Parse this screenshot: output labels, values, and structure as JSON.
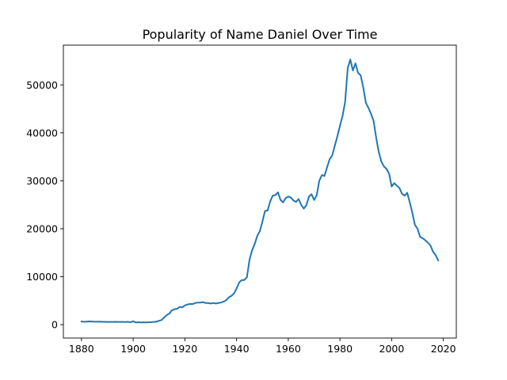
{
  "chart_data": {
    "type": "line",
    "title": "Popularity of Name Daniel Over Time",
    "xlabel": "",
    "ylabel": "",
    "xlim": [
      1873,
      2025
    ],
    "ylim": [
      -2800,
      58300
    ],
    "xticks": [
      1880,
      1900,
      1920,
      1940,
      1960,
      1980,
      2000,
      2020
    ],
    "yticks": [
      0,
      10000,
      20000,
      30000,
      40000,
      50000
    ],
    "grid": false,
    "line_color": "#1f77b4",
    "series": [
      {
        "points": [
          [
            1880,
            650
          ],
          [
            1881,
            580
          ],
          [
            1882,
            620
          ],
          [
            1883,
            660
          ],
          [
            1884,
            640
          ],
          [
            1885,
            610
          ],
          [
            1886,
            600
          ],
          [
            1887,
            620
          ],
          [
            1888,
            590
          ],
          [
            1889,
            580
          ],
          [
            1890,
            560
          ],
          [
            1891,
            560
          ],
          [
            1892,
            570
          ],
          [
            1893,
            580
          ],
          [
            1894,
            560
          ],
          [
            1895,
            570
          ],
          [
            1896,
            560
          ],
          [
            1897,
            550
          ],
          [
            1898,
            580
          ],
          [
            1899,
            500
          ],
          [
            1900,
            700
          ],
          [
            1901,
            450
          ],
          [
            1902,
            500
          ],
          [
            1903,
            460
          ],
          [
            1904,
            480
          ],
          [
            1905,
            470
          ],
          [
            1906,
            500
          ],
          [
            1907,
            520
          ],
          [
            1908,
            560
          ],
          [
            1909,
            620
          ],
          [
            1910,
            800
          ],
          [
            1911,
            950
          ],
          [
            1912,
            1500
          ],
          [
            1913,
            2000
          ],
          [
            1914,
            2300
          ],
          [
            1915,
            3000
          ],
          [
            1916,
            3200
          ],
          [
            1917,
            3300
          ],
          [
            1918,
            3700
          ],
          [
            1919,
            3600
          ],
          [
            1920,
            4000
          ],
          [
            1921,
            4200
          ],
          [
            1922,
            4300
          ],
          [
            1923,
            4300
          ],
          [
            1924,
            4500
          ],
          [
            1925,
            4600
          ],
          [
            1926,
            4600
          ],
          [
            1927,
            4700
          ],
          [
            1928,
            4500
          ],
          [
            1929,
            4500
          ],
          [
            1930,
            4400
          ],
          [
            1931,
            4500
          ],
          [
            1932,
            4400
          ],
          [
            1933,
            4500
          ],
          [
            1934,
            4600
          ],
          [
            1935,
            4800
          ],
          [
            1936,
            5100
          ],
          [
            1937,
            5700
          ],
          [
            1938,
            6000
          ],
          [
            1939,
            6500
          ],
          [
            1940,
            7500
          ],
          [
            1941,
            8800
          ],
          [
            1942,
            9300
          ],
          [
            1943,
            9300
          ],
          [
            1944,
            9900
          ],
          [
            1945,
            13500
          ],
          [
            1946,
            15500
          ],
          [
            1947,
            16800
          ],
          [
            1948,
            18500
          ],
          [
            1949,
            19500
          ],
          [
            1950,
            21500
          ],
          [
            1951,
            23700
          ],
          [
            1952,
            23800
          ],
          [
            1953,
            25700
          ],
          [
            1954,
            26900
          ],
          [
            1955,
            27000
          ],
          [
            1956,
            27600
          ],
          [
            1957,
            26000
          ],
          [
            1958,
            25500
          ],
          [
            1959,
            26400
          ],
          [
            1960,
            26700
          ],
          [
            1961,
            26500
          ],
          [
            1962,
            25900
          ],
          [
            1963,
            25600
          ],
          [
            1964,
            26200
          ],
          [
            1965,
            25000
          ],
          [
            1966,
            24200
          ],
          [
            1967,
            24900
          ],
          [
            1968,
            26700
          ],
          [
            1969,
            27200
          ],
          [
            1970,
            26000
          ],
          [
            1971,
            27000
          ],
          [
            1972,
            30000
          ],
          [
            1973,
            31200
          ],
          [
            1974,
            31000
          ],
          [
            1975,
            32800
          ],
          [
            1976,
            34500
          ],
          [
            1977,
            35300
          ],
          [
            1978,
            37300
          ],
          [
            1979,
            39300
          ],
          [
            1980,
            41500
          ],
          [
            1981,
            43500
          ],
          [
            1982,
            46500
          ],
          [
            1983,
            53500
          ],
          [
            1984,
            55300
          ],
          [
            1985,
            53000
          ],
          [
            1986,
            54500
          ],
          [
            1987,
            52500
          ],
          [
            1988,
            52000
          ],
          [
            1989,
            49500
          ],
          [
            1990,
            46300
          ],
          [
            1991,
            45200
          ],
          [
            1992,
            44000
          ],
          [
            1993,
            42500
          ],
          [
            1994,
            39000
          ],
          [
            1995,
            36000
          ],
          [
            1996,
            34000
          ],
          [
            1997,
            33000
          ],
          [
            1998,
            32500
          ],
          [
            1999,
            31500
          ],
          [
            2000,
            28800
          ],
          [
            2001,
            29500
          ],
          [
            2002,
            29000
          ],
          [
            2003,
            28500
          ],
          [
            2004,
            27300
          ],
          [
            2005,
            26900
          ],
          [
            2006,
            27500
          ],
          [
            2007,
            25500
          ],
          [
            2008,
            23300
          ],
          [
            2009,
            20800
          ],
          [
            2010,
            20000
          ],
          [
            2011,
            18300
          ],
          [
            2012,
            18000
          ],
          [
            2013,
            17600
          ],
          [
            2014,
            17100
          ],
          [
            2015,
            16500
          ],
          [
            2016,
            15200
          ],
          [
            2017,
            14500
          ],
          [
            2018,
            13400
          ]
        ]
      }
    ]
  }
}
